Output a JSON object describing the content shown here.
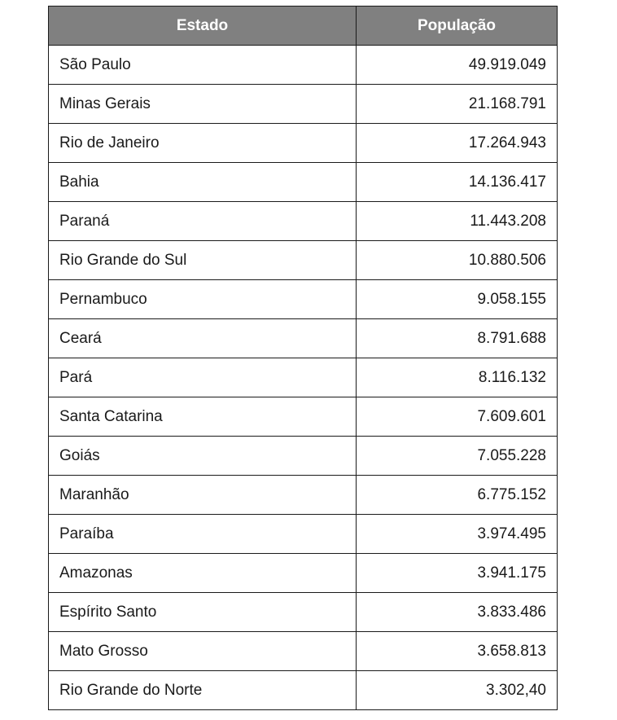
{
  "table": {
    "headers": [
      "Estado",
      "População"
    ],
    "rows": [
      [
        "São Paulo",
        "49.919.049"
      ],
      [
        "Minas Gerais",
        "21.168.791"
      ],
      [
        "Rio de Janeiro",
        "17.264.943"
      ],
      [
        "Bahia",
        "14.136.417"
      ],
      [
        "Paraná",
        "11.443.208"
      ],
      [
        "Rio Grande do Sul",
        "10.880.506"
      ],
      [
        "Pernambuco",
        "9.058.155"
      ],
      [
        "Ceará",
        "8.791.688"
      ],
      [
        "Pará",
        "8.116.132"
      ],
      [
        "Santa Catarina",
        "7.609.601"
      ],
      [
        "Goiás",
        "7.055.228"
      ],
      [
        "Maranhão",
        "6.775.152"
      ],
      [
        "Paraíba",
        "3.974.495"
      ],
      [
        "Amazonas",
        "3.941.175"
      ],
      [
        "Espírito Santo",
        "3.833.486"
      ],
      [
        "Mato Grosso",
        "3.658.813"
      ],
      [
        "Rio Grande do Norte",
        "3.302,40"
      ]
    ]
  }
}
